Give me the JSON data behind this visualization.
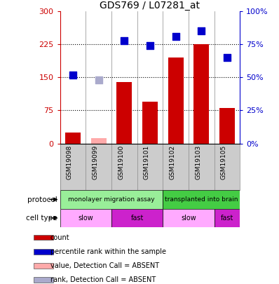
{
  "title": "GDS769 / L07281_at",
  "samples": [
    "GSM19098",
    "GSM19099",
    "GSM19100",
    "GSM19101",
    "GSM19102",
    "GSM19103",
    "GSM19105"
  ],
  "bar_values": [
    25,
    12,
    140,
    95,
    195,
    225,
    80
  ],
  "bar_absent": [
    false,
    true,
    false,
    false,
    false,
    false,
    false
  ],
  "dot_values": [
    52,
    48,
    78,
    74,
    81,
    85,
    65
  ],
  "dot_absent": [
    false,
    true,
    false,
    false,
    false,
    false,
    false
  ],
  "bar_color_present": "#cc0000",
  "bar_color_absent": "#ffaaaa",
  "dot_color_present": "#0000cc",
  "dot_color_absent": "#aaaacc",
  "left_ylim": [
    0,
    300
  ],
  "right_ylim": [
    0,
    100
  ],
  "left_yticks": [
    0,
    75,
    150,
    225,
    300
  ],
  "right_yticks": [
    0,
    25,
    50,
    75,
    100
  ],
  "right_yticklabels": [
    "0%",
    "25%",
    "50%",
    "75%",
    "100%"
  ],
  "hlines": [
    75,
    150,
    225
  ],
  "protocol_groups": [
    {
      "label": "monolayer migration assay",
      "start": 0,
      "end": 4,
      "color": "#99ee99"
    },
    {
      "label": "transplanted into brain",
      "start": 4,
      "end": 7,
      "color": "#44cc44"
    }
  ],
  "celltype_groups": [
    {
      "label": "slow",
      "start": 0,
      "end": 2,
      "color": "#ffaaff"
    },
    {
      "label": "fast",
      "start": 2,
      "end": 4,
      "color": "#cc22cc"
    },
    {
      "label": "slow",
      "start": 4,
      "end": 6,
      "color": "#ffaaff"
    },
    {
      "label": "fast",
      "start": 6,
      "end": 7,
      "color": "#cc22cc"
    }
  ],
  "legend_items": [
    {
      "label": "count",
      "color": "#cc0000"
    },
    {
      "label": "percentile rank within the sample",
      "color": "#0000cc"
    },
    {
      "label": "value, Detection Call = ABSENT",
      "color": "#ffaaaa"
    },
    {
      "label": "rank, Detection Call = ABSENT",
      "color": "#aaaacc"
    }
  ],
  "protocol_label": "protocol",
  "celltype_label": "cell type",
  "left_axis_color": "#cc0000",
  "right_axis_color": "#0000cc",
  "sample_box_color": "#cccccc",
  "sep_color": "#888888"
}
